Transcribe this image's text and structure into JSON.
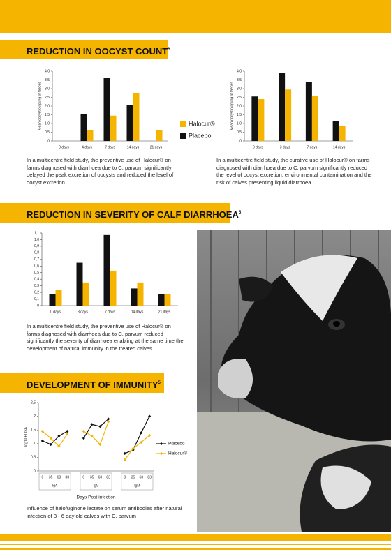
{
  "sections": [
    {
      "heading": "REDUCTION IN OOCYST COUNT",
      "note": "5"
    },
    {
      "heading": "REDUCTION IN SEVERITY OF CALF DIARRHOEA",
      "note": "5"
    },
    {
      "heading": "DEVELOPMENT OF IMMUNITY",
      "note": "5"
    }
  ],
  "paragraphs": [
    "In a multicentre field study, the preventive use of Halocur® on farms diagnosed with diarrhoea due to C. parvum significantly delayed the peak excretion of oocysts and reduced the level of oocyst excretion.",
    "In a multicentre field study, the curative use of Halocur® on farms diagnosed with diarrhoea due to C. parvum significantly reduced the level of oocyst excretion, environmental contamination and the risk of calves presenting liquid diarrhoea.",
    "In a multicentre field study, the preventive use of Halocur® on farms diagnosed with diarrhoea due to C. parvum reduced significantly the severity of diarrhoea enabling at the same time the development of natural immunity in the treated calves.",
    "Influence of halofuginone lactate on serum antibodies after natural infection of 3 - 6 day old calves with C. parvum"
  ],
  "chart_data": [
    {
      "type": "bar",
      "ylabel": "Mean oocyst output/g of faeces",
      "categories": [
        "0 days",
        "4 days",
        "7 days",
        "14 days",
        "21 days"
      ],
      "series": [
        {
          "name": "Placebo",
          "color": "#111111",
          "values": [
            0,
            1.55,
            3.6,
            2.05,
            0
          ]
        },
        {
          "name": "Halocur®",
          "color": "#f5b400",
          "values": [
            0,
            0.6,
            1.45,
            2.75,
            0.6
          ]
        }
      ],
      "ylim": [
        0,
        4
      ],
      "yticks": [
        0,
        {
          "value": 0.5,
          "label": "0,5"
        },
        {
          "value": 1,
          "label": "1,0"
        },
        {
          "value": 1.5,
          "label": "1,5"
        },
        {
          "value": 2,
          "label": "2,0"
        },
        {
          "value": 2.5,
          "label": "2,5"
        },
        {
          "value": 3,
          "label": "3,0"
        },
        {
          "value": 3.5,
          "label": "3,5"
        },
        {
          "value": 4,
          "label": "4,0"
        }
      ],
      "legend": true
    },
    {
      "type": "bar",
      "ylabel": "Mean oocyst output/g of faeces",
      "categories": [
        "0 days",
        "3 days",
        "7 days",
        "14 days"
      ],
      "series": [
        {
          "name": "Placebo",
          "color": "#111111",
          "values": [
            2.55,
            3.9,
            3.4,
            1.15
          ]
        },
        {
          "name": "Halocur®",
          "color": "#f5b400",
          "values": [
            2.4,
            2.95,
            2.6,
            0.85
          ]
        }
      ],
      "ylim": [
        0,
        4
      ],
      "yticks": [
        0,
        {
          "value": 0.5,
          "label": "0,5"
        },
        {
          "value": 1,
          "label": "1,0"
        },
        {
          "value": 1.5,
          "label": "1,5"
        },
        {
          "value": 2,
          "label": "2,0"
        },
        {
          "value": 2.5,
          "label": "2,5"
        },
        {
          "value": 3,
          "label": "3,0"
        },
        {
          "value": 3.5,
          "label": "3,5"
        },
        {
          "value": 4,
          "label": "4,0"
        }
      ],
      "legend": false
    },
    {
      "type": "bar",
      "categories": [
        "0 days",
        "3 days",
        "7 days",
        "14 days",
        "21 days"
      ],
      "series": [
        {
          "name": "Placebo",
          "color": "#111111",
          "values": [
            0.17,
            0.65,
            1.07,
            0.26,
            0.17
          ]
        },
        {
          "name": "Halocur®",
          "color": "#f5b400",
          "values": [
            0.24,
            0.35,
            0.53,
            0.35,
            0.18
          ]
        }
      ],
      "ylim": [
        0,
        1.1
      ],
      "yticks": [
        0,
        {
          "value": 0.1,
          "label": "0,1"
        },
        {
          "value": 0.2,
          "label": "0,2"
        },
        {
          "value": 0.3,
          "label": "0,3"
        },
        {
          "value": 0.4,
          "label": "0,4"
        },
        {
          "value": 0.5,
          "label": "0,5"
        },
        {
          "value": 0.6,
          "label": "0,6"
        },
        {
          "value": 0.7,
          "label": "0,7"
        },
        {
          "value": 0.8,
          "label": "0,8"
        },
        {
          "value": 0.9,
          "label": "0,9"
        },
        {
          "value": 1,
          "label": "1,0"
        },
        {
          "value": 1.1,
          "label": "1,1"
        }
      ],
      "legend": false
    },
    {
      "type": "line",
      "xlabel": "Days Post-infection",
      "ylabel": "log10 ELISA",
      "categories": [
        "0",
        "35",
        "63",
        "83",
        null,
        "0",
        "35",
        "63",
        "83",
        null,
        "0",
        "35",
        "63",
        "83"
      ],
      "groups": [
        "IgA",
        "IgG",
        "IgM"
      ],
      "series": [
        {
          "name": "Placebo",
          "color": "#111111",
          "values": [
            1.1,
            0.97,
            1.28,
            1.45,
            null,
            1.2,
            1.7,
            1.63,
            1.9,
            null,
            0.64,
            0.77,
            1.4,
            2.0
          ]
        },
        {
          "name": "Halocur®",
          "color": "#f5b400",
          "values": [
            1.45,
            1.2,
            0.9,
            1.35,
            null,
            1.45,
            1.28,
            0.97,
            1.8,
            null,
            0.41,
            0.82,
            1.05,
            1.3
          ]
        }
      ],
      "ylim": [
        0,
        2.5
      ],
      "yticks": [
        0,
        {
          "value": 0.5,
          "label": "0,5"
        },
        1,
        {
          "value": 1.5,
          "label": "1,5"
        },
        2,
        {
          "value": 2.5,
          "label": "2,5"
        }
      ],
      "legend": true
    }
  ]
}
